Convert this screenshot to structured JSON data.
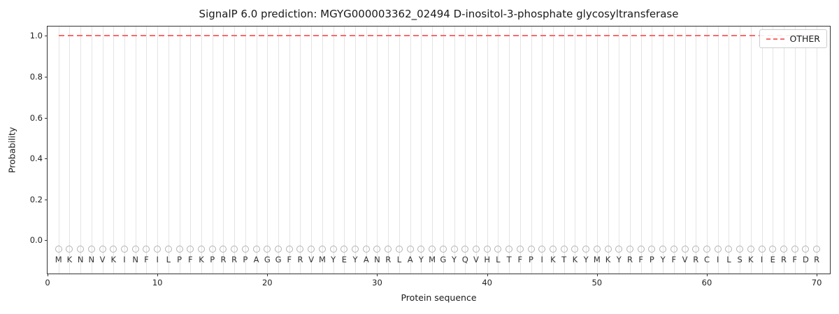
{
  "chart_data": {
    "type": "line",
    "title": "SignalP 6.0 prediction: MGYG000003362_02494 D-inositol-3-phosphate glycosyltransferase",
    "xlabel": "Protein sequence",
    "ylabel": "Probability",
    "xlim": [
      0,
      71.2
    ],
    "ylim": [
      -0.163,
      1.046
    ],
    "x_ticks": [
      0,
      10,
      20,
      30,
      40,
      50,
      60,
      70
    ],
    "y_ticks": [
      "0.0",
      "0.2",
      "0.4",
      "0.6",
      "0.8",
      "1.0"
    ],
    "grid": "vertical-gridline-per-residue",
    "legend": {
      "position": "upper right",
      "entries": [
        {
          "label": "OTHER",
          "color": "#f96a6a",
          "style": "dashed"
        }
      ]
    },
    "series": [
      {
        "name": "OTHER",
        "color": "#f96a6a",
        "style": "dashed",
        "x_range": [
          1,
          70
        ],
        "y_constant": 1.0
      }
    ],
    "sequence": [
      "M",
      "K",
      "N",
      "N",
      "V",
      "K",
      "I",
      "N",
      "F",
      "I",
      "L",
      "P",
      "F",
      "K",
      "P",
      "R",
      "R",
      "P",
      "A",
      "G",
      "G",
      "F",
      "R",
      "V",
      "M",
      "Y",
      "E",
      "Y",
      "A",
      "N",
      "R",
      "L",
      "A",
      "Y",
      "M",
      "G",
      "Y",
      "Q",
      "V",
      "H",
      "L",
      "T",
      "F",
      "P",
      "I",
      "K",
      "T",
      "K",
      "Y",
      "M",
      "K",
      "Y",
      "R",
      "F",
      "P",
      "Y",
      "F",
      "V",
      "R",
      "C",
      "I",
      "L",
      "S",
      "K",
      "I",
      "E",
      "R",
      "F",
      "D",
      "R"
    ],
    "marker_y": -0.045,
    "letter_y": -0.093,
    "marker_shape": "open-circle"
  }
}
